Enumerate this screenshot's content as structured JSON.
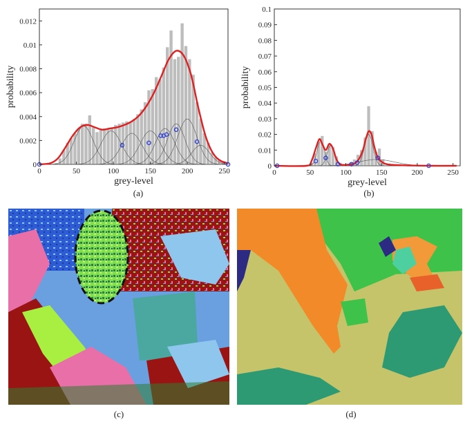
{
  "figure": {
    "labels": {
      "a": "(a)",
      "b": "(b)",
      "c": "(c)",
      "d": "(d)"
    }
  },
  "chart_data": [
    {
      "type": "bar",
      "xlabel": "grey-level",
      "ylabel": "probability",
      "xlim": [
        0,
        255
      ],
      "ylim": [
        0,
        0.013
      ],
      "xticks": [
        0,
        50,
        100,
        150,
        200,
        250
      ],
      "yticks": [
        0,
        0.002,
        0.004,
        0.006,
        0.008,
        0.01,
        0.012
      ],
      "ytick_labels": [
        "0",
        "0.002",
        "0.004",
        "0.006",
        "0.008",
        "0.01",
        "0.012"
      ],
      "grid": false,
      "colors": {
        "bars": "#bdbdbd",
        "mixture": "#e02020",
        "components": "#555555",
        "markers": "#2a3cd6"
      },
      "histogram": {
        "x": [
          23,
          28,
          33,
          38,
          43,
          48,
          53,
          58,
          63,
          68,
          73,
          78,
          83,
          88,
          93,
          98,
          103,
          108,
          113,
          118,
          123,
          128,
          133,
          138,
          143,
          148,
          153,
          158,
          163,
          168,
          173,
          178,
          183,
          188,
          193,
          198,
          203,
          208,
          213,
          218,
          223,
          228,
          233,
          238,
          243,
          248,
          253
        ],
        "values": [
          0.0001,
          0.0005,
          0.0012,
          0.0018,
          0.0022,
          0.0026,
          0.003,
          0.0034,
          0.0034,
          0.0041,
          0.0031,
          0.0027,
          0.003,
          0.003,
          0.003,
          0.0031,
          0.0033,
          0.0034,
          0.0035,
          0.0036,
          0.0035,
          0.0038,
          0.0042,
          0.0046,
          0.0052,
          0.0062,
          0.0063,
          0.0073,
          0.0071,
          0.0081,
          0.0098,
          0.0112,
          0.0088,
          0.009,
          0.0118,
          0.0099,
          0.0088,
          0.0075,
          0.0052,
          0.0038,
          0.0026,
          0.0018,
          0.001,
          0.0006,
          0.0004,
          0.0002,
          0.0001
        ]
      },
      "mixture": {
        "x": [
          0,
          15,
          25,
          35,
          45,
          55,
          65,
          75,
          85,
          95,
          105,
          115,
          125,
          135,
          145,
          155,
          165,
          175,
          185,
          195,
          205,
          215,
          225,
          235,
          245,
          255
        ],
        "y": [
          0,
          0.0001,
          0.0005,
          0.0014,
          0.0024,
          0.0031,
          0.0033,
          0.0031,
          0.0029,
          0.003,
          0.0031,
          0.0033,
          0.0036,
          0.0041,
          0.0049,
          0.006,
          0.0074,
          0.0088,
          0.0095,
          0.0091,
          0.0075,
          0.0047,
          0.0023,
          0.0009,
          0.0003,
          0.0001
        ]
      },
      "components": [
        {
          "mean": 60,
          "sd": 13,
          "amp": 0.0032
        },
        {
          "mean": 97,
          "sd": 14,
          "amp": 0.0028
        },
        {
          "mean": 125,
          "sd": 14,
          "amp": 0.0026
        },
        {
          "mean": 150,
          "sd": 14,
          "amp": 0.0028
        },
        {
          "mean": 170,
          "sd": 13,
          "amp": 0.003
        },
        {
          "mean": 185,
          "sd": 12,
          "amp": 0.0034
        },
        {
          "mean": 200,
          "sd": 13,
          "amp": 0.0038
        },
        {
          "mean": 218,
          "sd": 12,
          "amp": 0.0016
        }
      ],
      "boundary_markers": {
        "x": [
          0,
          112,
          148,
          164,
          168,
          172,
          185,
          213,
          255
        ],
        "y": [
          0,
          0.0016,
          0.0018,
          0.0024,
          0.0024,
          0.0025,
          0.0029,
          0.0019,
          0
        ]
      }
    },
    {
      "type": "bar",
      "xlabel": "grey-level",
      "ylabel": "probability",
      "xlim": [
        0,
        260
      ],
      "ylim": [
        0,
        0.1
      ],
      "xticks": [
        0,
        50,
        100,
        150,
        200,
        250
      ],
      "yticks": [
        0,
        0.01,
        0.02,
        0.03,
        0.04,
        0.05,
        0.06,
        0.07,
        0.08,
        0.09,
        0.1
      ],
      "ytick_labels": [
        "0",
        "0.01",
        "0.02",
        "0.03",
        "0.04",
        "0.05",
        "0.06",
        "0.07",
        "0.08",
        "0.09",
        "0.1"
      ],
      "grid": false,
      "colors": {
        "bars": "#bdbdbd",
        "mixture": "#e02020",
        "components": "#555555",
        "markers": "#2a3cd6"
      },
      "histogram": {
        "x": [
          52,
          57,
          62,
          67,
          72,
          77,
          82,
          87,
          92,
          97,
          102,
          107,
          112,
          117,
          122,
          127,
          132,
          137,
          142,
          147,
          152
        ],
        "values": [
          0.002,
          0.008,
          0.015,
          0.019,
          0.009,
          0.014,
          0.012,
          0.006,
          0.002,
          0.001,
          0.001,
          0.002,
          0.004,
          0.007,
          0.01,
          0.018,
          0.038,
          0.022,
          0.009,
          0.011,
          0.004
        ]
      },
      "mixture": {
        "x": [
          0,
          45,
          52,
          58,
          63,
          67,
          72,
          77,
          82,
          87,
          92,
          100,
          110,
          118,
          124,
          128,
          132,
          136,
          140,
          145,
          152,
          160,
          180,
          220,
          255
        ],
        "y": [
          0,
          0,
          0.003,
          0.011,
          0.017,
          0.014,
          0.01,
          0.014,
          0.011,
          0.004,
          0.001,
          0.0005,
          0.001,
          0.004,
          0.01,
          0.017,
          0.022,
          0.02,
          0.012,
          0.005,
          0.002,
          0.0008,
          0.0003,
          0,
          0
        ]
      },
      "components": [
        {
          "mean": 65,
          "sd": 5,
          "amp": 0.016
        },
        {
          "mean": 79,
          "sd": 5,
          "amp": 0.013
        },
        {
          "mean": 132,
          "sd": 6,
          "amp": 0.02
        },
        {
          "mean": 143,
          "sd": 25,
          "amp": 0.004
        }
      ],
      "boundary_markers": {
        "x": [
          4,
          58,
          72,
          89,
          108,
          116,
          145,
          216
        ],
        "y": [
          0,
          0.003,
          0.005,
          0.001,
          0.001,
          0.002,
          0.005,
          0
        ]
      }
    }
  ]
}
